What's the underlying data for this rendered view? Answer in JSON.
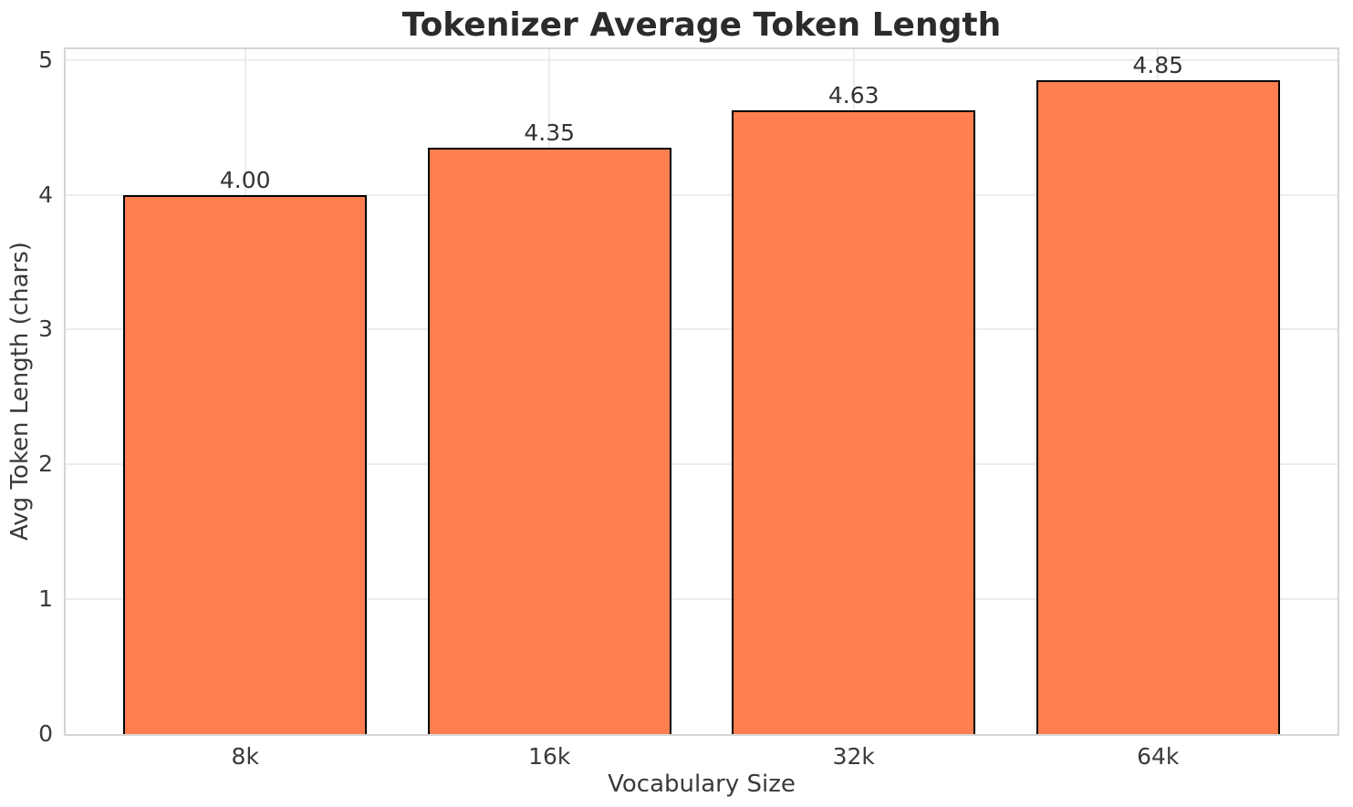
{
  "chart_data": {
    "type": "bar",
    "title": "Tokenizer Average Token Length",
    "xlabel": "Vocabulary Size",
    "ylabel": "Avg Token Length (chars)",
    "categories": [
      "8k",
      "16k",
      "32k",
      "64k"
    ],
    "values": [
      4.0,
      4.35,
      4.63,
      4.85
    ],
    "value_labels": [
      "4.00",
      "4.35",
      "4.63",
      "4.85"
    ],
    "yticks": [
      "0",
      "1",
      "2",
      "3",
      "4",
      "5"
    ],
    "ytick_values": [
      0,
      1,
      2,
      3,
      4,
      5
    ],
    "ylim": [
      0,
      5.08
    ],
    "xlim": [
      -0.59,
      3.59
    ],
    "bar_width": 0.8,
    "grid": true,
    "legend": "none",
    "bar_color": "#FF7F50",
    "bar_edge_color": "#000000",
    "grid_color": "#ececec",
    "spine_color": "#d5d5d5",
    "background_color": "#ffffff",
    "title_color": "#2b2b2b",
    "text_color": "#3a3a3a"
  }
}
